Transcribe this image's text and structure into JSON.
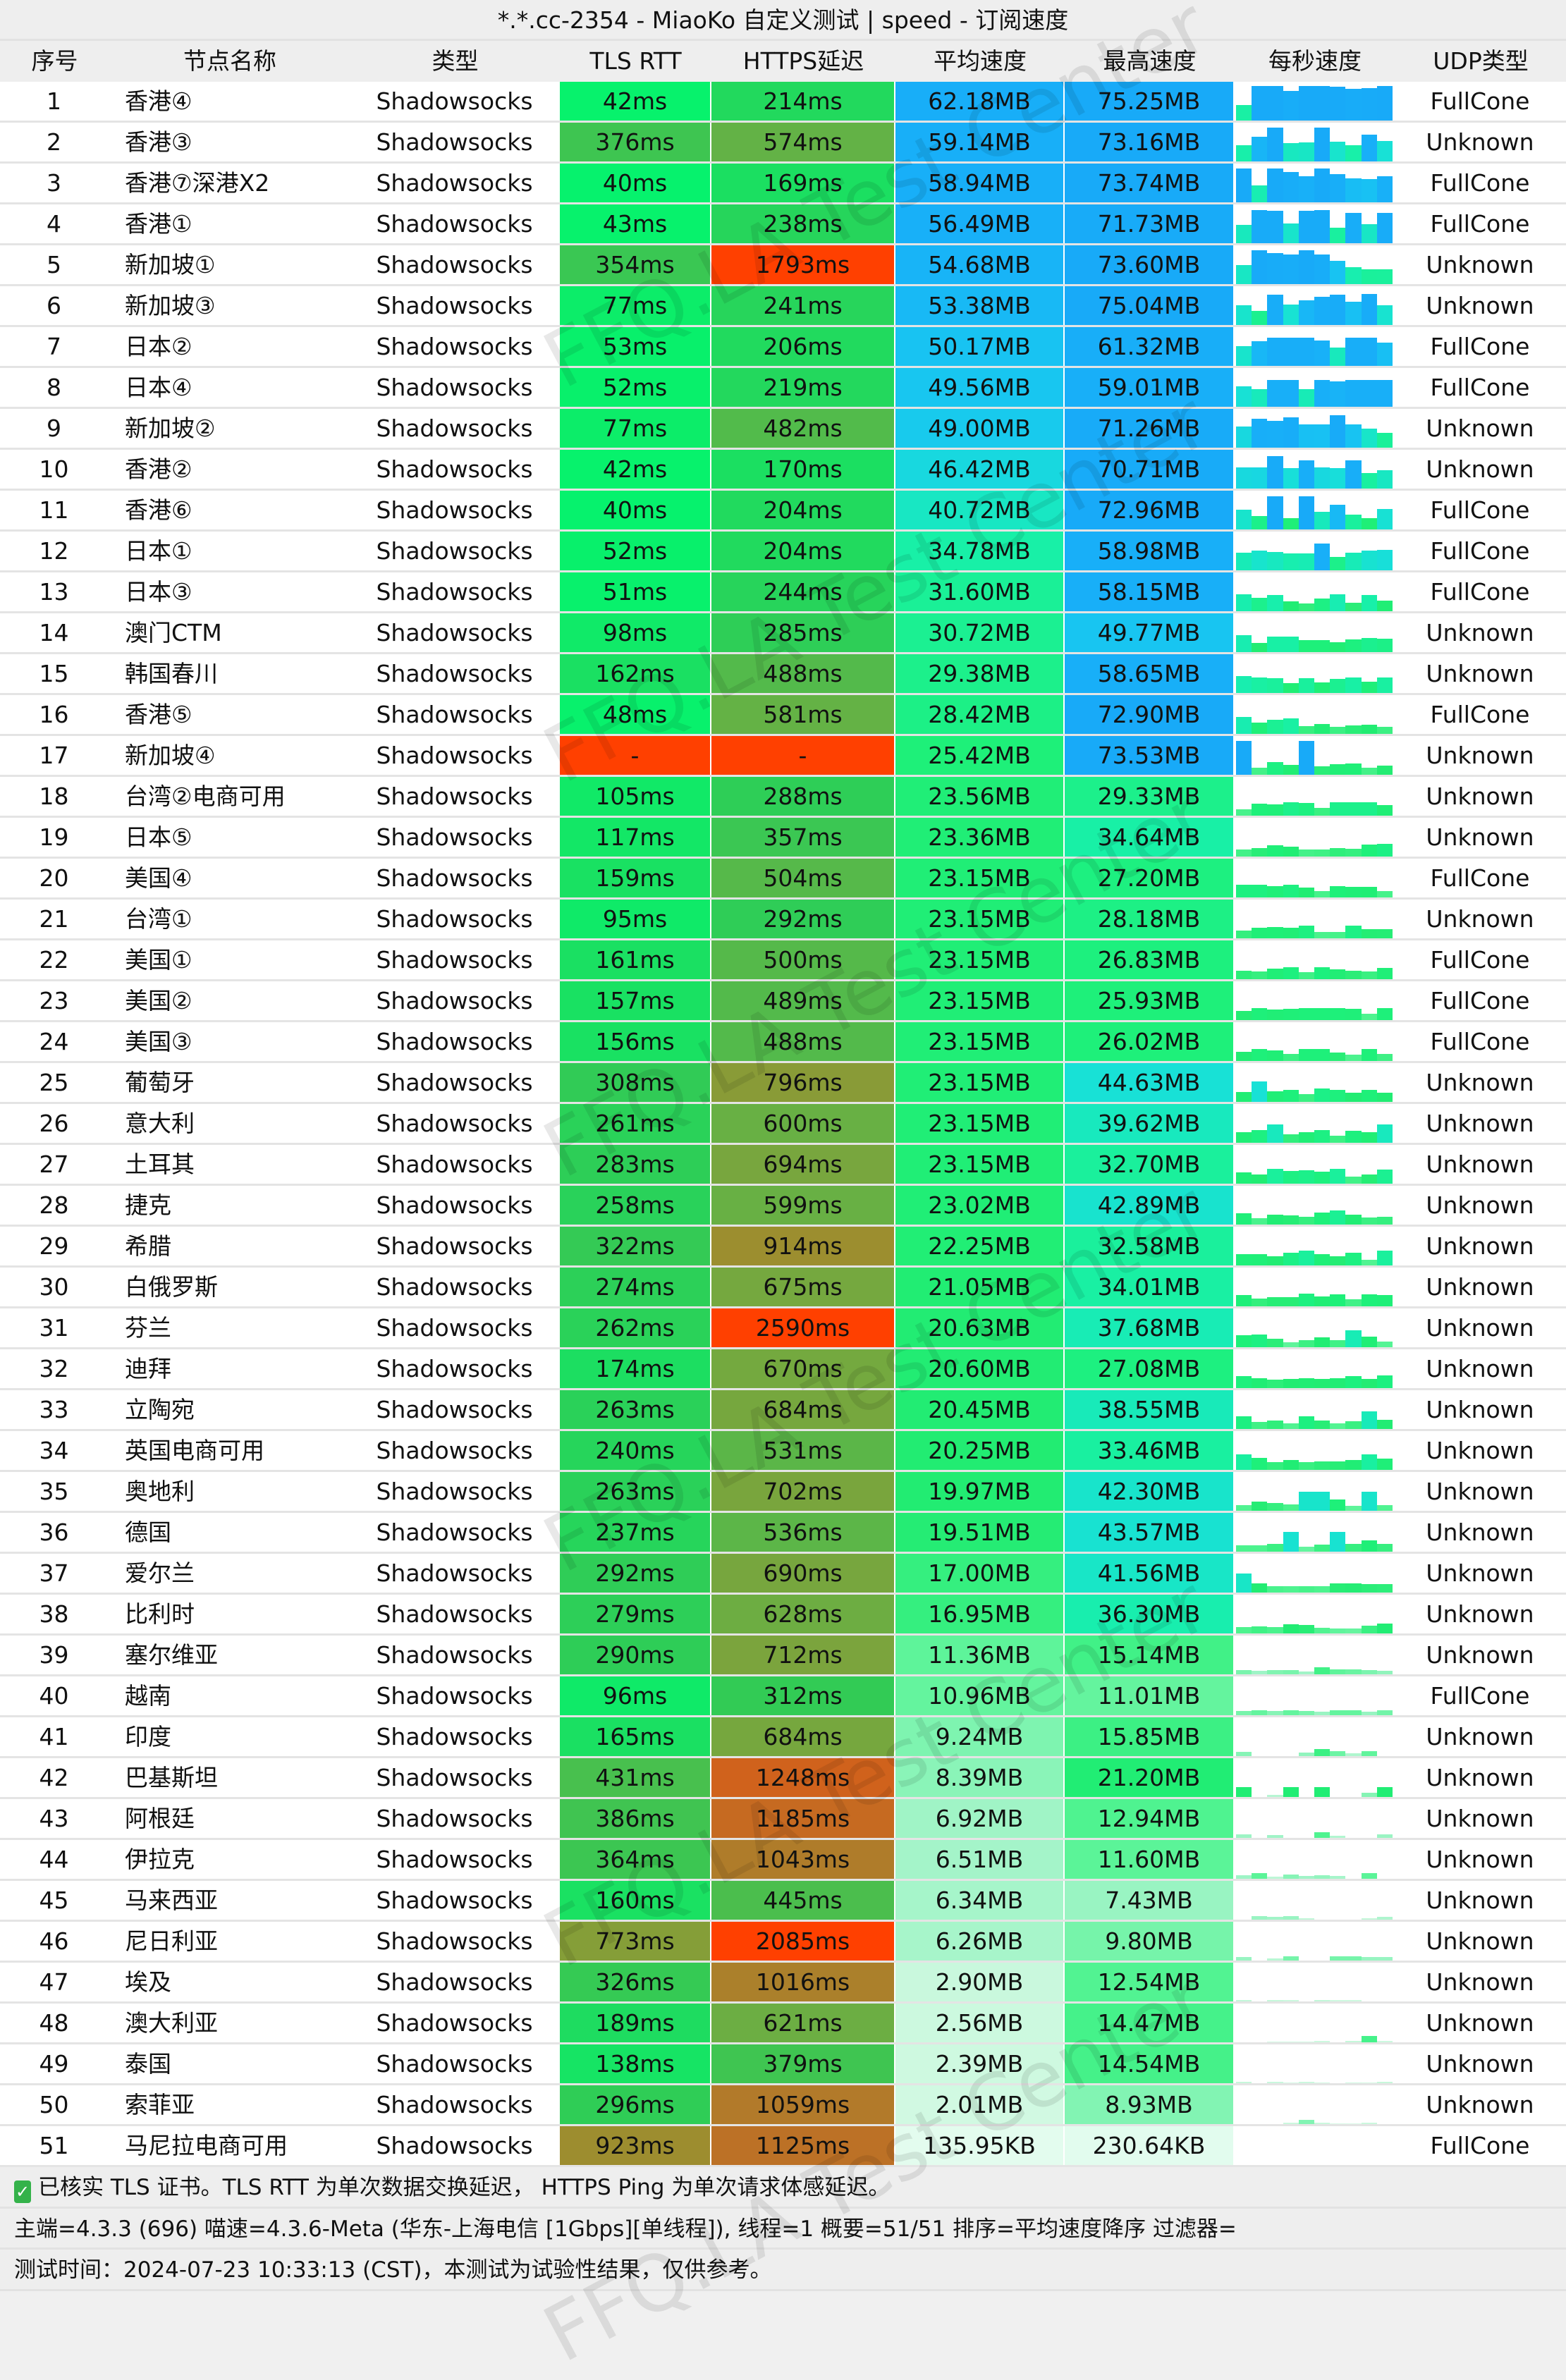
{
  "title": "*.*.cc-2354 - MiaoKo 自定义测试 | speed - 订阅速度",
  "columns": [
    "序号",
    "节点名称",
    "类型",
    "TLS RTT",
    "HTTPS延迟",
    "平均速度",
    "最高速度",
    "每秒速度",
    "UDP类型"
  ],
  "node_type": "Shadowsocks",
  "rows": [
    [
      "1",
      "香港④",
      "42ms",
      "214ms",
      "62.18MB",
      "75.25MB",
      "FullCone"
    ],
    [
      "2",
      "香港③",
      "376ms",
      "574ms",
      "59.14MB",
      "73.16MB",
      "Unknown"
    ],
    [
      "3",
      "香港⑦深港X2",
      "40ms",
      "169ms",
      "58.94MB",
      "73.74MB",
      "FullCone"
    ],
    [
      "4",
      "香港①",
      "43ms",
      "238ms",
      "56.49MB",
      "71.73MB",
      "FullCone"
    ],
    [
      "5",
      "新加坡①",
      "354ms",
      "1793ms",
      "54.68MB",
      "73.60MB",
      "Unknown"
    ],
    [
      "6",
      "新加坡③",
      "77ms",
      "241ms",
      "53.38MB",
      "75.04MB",
      "Unknown"
    ],
    [
      "7",
      "日本②",
      "53ms",
      "206ms",
      "50.17MB",
      "61.32MB",
      "FullCone"
    ],
    [
      "8",
      "日本④",
      "52ms",
      "219ms",
      "49.56MB",
      "59.01MB",
      "FullCone"
    ],
    [
      "9",
      "新加坡②",
      "77ms",
      "482ms",
      "49.00MB",
      "71.26MB",
      "Unknown"
    ],
    [
      "10",
      "香港②",
      "42ms",
      "170ms",
      "46.42MB",
      "70.71MB",
      "Unknown"
    ],
    [
      "11",
      "香港⑥",
      "40ms",
      "204ms",
      "40.72MB",
      "72.96MB",
      "FullCone"
    ],
    [
      "12",
      "日本①",
      "52ms",
      "204ms",
      "34.78MB",
      "58.98MB",
      "FullCone"
    ],
    [
      "13",
      "日本③",
      "51ms",
      "244ms",
      "31.60MB",
      "58.15MB",
      "FullCone"
    ],
    [
      "14",
      "澳门CTM",
      "98ms",
      "285ms",
      "30.72MB",
      "49.77MB",
      "Unknown"
    ],
    [
      "15",
      "韩国春川",
      "162ms",
      "488ms",
      "29.38MB",
      "58.65MB",
      "Unknown"
    ],
    [
      "16",
      "香港⑤",
      "48ms",
      "581ms",
      "28.42MB",
      "72.90MB",
      "FullCone"
    ],
    [
      "17",
      "新加坡④",
      "-",
      "-",
      "25.42MB",
      "73.53MB",
      "Unknown"
    ],
    [
      "18",
      "台湾②电商可用",
      "105ms",
      "288ms",
      "23.56MB",
      "29.33MB",
      "Unknown"
    ],
    [
      "19",
      "日本⑤",
      "117ms",
      "357ms",
      "23.36MB",
      "34.64MB",
      "Unknown"
    ],
    [
      "20",
      "美国④",
      "159ms",
      "504ms",
      "23.15MB",
      "27.20MB",
      "FullCone"
    ],
    [
      "21",
      "台湾①",
      "95ms",
      "292ms",
      "23.15MB",
      "28.18MB",
      "Unknown"
    ],
    [
      "22",
      "美国①",
      "161ms",
      "500ms",
      "23.15MB",
      "26.83MB",
      "FullCone"
    ],
    [
      "23",
      "美国②",
      "157ms",
      "489ms",
      "23.15MB",
      "25.93MB",
      "FullCone"
    ],
    [
      "24",
      "美国③",
      "156ms",
      "488ms",
      "23.15MB",
      "26.02MB",
      "FullCone"
    ],
    [
      "25",
      "葡萄牙",
      "308ms",
      "796ms",
      "23.15MB",
      "44.63MB",
      "Unknown"
    ],
    [
      "26",
      "意大利",
      "261ms",
      "600ms",
      "23.15MB",
      "39.62MB",
      "Unknown"
    ],
    [
      "27",
      "土耳其",
      "283ms",
      "694ms",
      "23.15MB",
      "32.70MB",
      "Unknown"
    ],
    [
      "28",
      "捷克",
      "258ms",
      "599ms",
      "23.02MB",
      "42.89MB",
      "Unknown"
    ],
    [
      "29",
      "希腊",
      "322ms",
      "914ms",
      "22.25MB",
      "32.58MB",
      "Unknown"
    ],
    [
      "30",
      "白俄罗斯",
      "274ms",
      "675ms",
      "21.05MB",
      "34.01MB",
      "Unknown"
    ],
    [
      "31",
      "芬兰",
      "262ms",
      "2590ms",
      "20.63MB",
      "37.68MB",
      "Unknown"
    ],
    [
      "32",
      "迪拜",
      "174ms",
      "670ms",
      "20.60MB",
      "27.08MB",
      "Unknown"
    ],
    [
      "33",
      "立陶宛",
      "263ms",
      "684ms",
      "20.45MB",
      "38.55MB",
      "Unknown"
    ],
    [
      "34",
      "英国电商可用",
      "240ms",
      "531ms",
      "20.25MB",
      "33.46MB",
      "Unknown"
    ],
    [
      "35",
      "奥地利",
      "263ms",
      "702ms",
      "19.97MB",
      "42.30MB",
      "Unknown"
    ],
    [
      "36",
      "德国",
      "237ms",
      "536ms",
      "19.51MB",
      "43.57MB",
      "Unknown"
    ],
    [
      "37",
      "爱尔兰",
      "292ms",
      "690ms",
      "17.00MB",
      "41.56MB",
      "Unknown"
    ],
    [
      "38",
      "比利时",
      "279ms",
      "628ms",
      "16.95MB",
      "36.30MB",
      "Unknown"
    ],
    [
      "39",
      "塞尔维亚",
      "290ms",
      "712ms",
      "11.36MB",
      "15.14MB",
      "Unknown"
    ],
    [
      "40",
      "越南",
      "96ms",
      "312ms",
      "10.96MB",
      "11.01MB",
      "FullCone"
    ],
    [
      "41",
      "印度",
      "165ms",
      "684ms",
      "9.24MB",
      "15.85MB",
      "Unknown"
    ],
    [
      "42",
      "巴基斯坦",
      "431ms",
      "1248ms",
      "8.39MB",
      "21.20MB",
      "Unknown"
    ],
    [
      "43",
      "阿根廷",
      "386ms",
      "1185ms",
      "6.92MB",
      "12.94MB",
      "Unknown"
    ],
    [
      "44",
      "伊拉克",
      "364ms",
      "1043ms",
      "6.51MB",
      "11.60MB",
      "Unknown"
    ],
    [
      "45",
      "马来西亚",
      "160ms",
      "445ms",
      "6.34MB",
      "7.43MB",
      "Unknown"
    ],
    [
      "46",
      "尼日利亚",
      "773ms",
      "2085ms",
      "6.26MB",
      "9.80MB",
      "Unknown"
    ],
    [
      "47",
      "埃及",
      "326ms",
      "1016ms",
      "2.90MB",
      "12.54MB",
      "Unknown"
    ],
    [
      "48",
      "澳大利亚",
      "189ms",
      "621ms",
      "2.56MB",
      "14.47MB",
      "Unknown"
    ],
    [
      "49",
      "泰国",
      "138ms",
      "379ms",
      "2.39MB",
      "14.54MB",
      "Unknown"
    ],
    [
      "50",
      "索菲亚",
      "296ms",
      "1059ms",
      "2.01MB",
      "8.93MB",
      "Unknown"
    ],
    [
      "51",
      "马尼拉电商可用",
      "923ms",
      "1125ms",
      "135.95KB",
      "230.64KB",
      "FullCone"
    ]
  ],
  "footer": {
    "line1": "已核实 TLS 证书。TLS RTT 为单次数据交换延迟， HTTPS Ping 为单次请求体感延迟。",
    "line2": "主端=4.3.3 (696) 喵速=4.3.6-Meta (华东-上海电信 [1Gbps][单线程]), 线程=1 概要=51/51 排序=平均速度降序 过滤器=",
    "line3": "测试时间：2024-07-23 10:33:13 (CST)，本测试为试验性结果，仅供参考。",
    "check_icon": "check-icon"
  },
  "watermark": "FFQ.LA Test Center",
  "colors": {
    "latency_failed": "#ff4000",
    "latency_stops": [
      [
        0,
        "#00f870"
      ],
      [
        300,
        "#30cc56"
      ],
      [
        600,
        "#68b044"
      ],
      [
        900,
        "#9a9030"
      ],
      [
        1100,
        "#b87428"
      ],
      [
        1300,
        "#d85c18"
      ],
      [
        1500,
        "#ff4000"
      ]
    ],
    "speed_stops": [
      [
        0,
        "#e4fcef"
      ],
      [
        3,
        "#c8f8dc"
      ],
      [
        7,
        "#9ff4c6"
      ],
      [
        12,
        "#55f494"
      ],
      [
        20,
        "#22ec72"
      ],
      [
        26,
        "#1ef07a"
      ],
      [
        35,
        "#18f0a8"
      ],
      [
        45,
        "#18e0d8"
      ],
      [
        50,
        "#18c4f2"
      ],
      [
        56,
        "#18b0f8"
      ],
      [
        80,
        "#18a8f8"
      ]
    ]
  }
}
